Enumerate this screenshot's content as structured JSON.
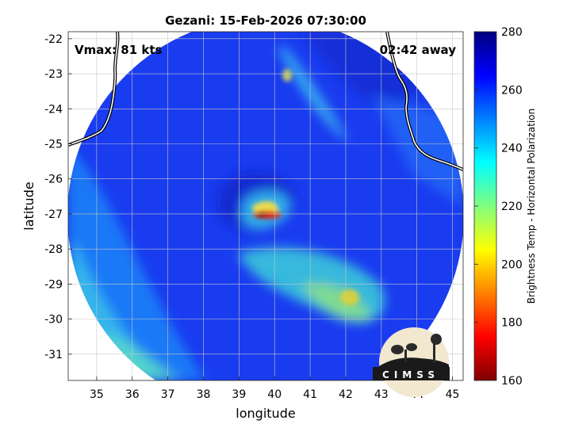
{
  "chart_data": {
    "type": "heatmap",
    "title": "Gezani: 15-Feb-2026 07:30:00",
    "xlabel": "longitude",
    "ylabel": "latitude",
    "xlim": [
      34.2,
      45.3
    ],
    "ylim": [
      -31.75,
      -21.8
    ],
    "x_ticks": [
      35,
      36,
      37,
      38,
      39,
      40,
      41,
      42,
      43,
      44,
      45
    ],
    "y_ticks": [
      -22,
      -23,
      -24,
      -25,
      -26,
      -27,
      -28,
      -29,
      -30,
      -31
    ],
    "grid": true,
    "colorbar": {
      "label": "Brightness Temp - Horizontal Polarization",
      "range": [
        160,
        280
      ],
      "ticks": [
        280,
        260,
        240,
        220,
        200,
        180,
        160
      ],
      "colormap": "jet"
    },
    "storm_center": {
      "lon": 39.8,
      "lat": -26.95
    },
    "eye_min_temp": 180,
    "swath_edge_temp": 255,
    "annotations": {
      "vmax": "Vmax: 81 kts",
      "time_away": "02:42 away"
    },
    "logo_text": "CIMSS"
  }
}
